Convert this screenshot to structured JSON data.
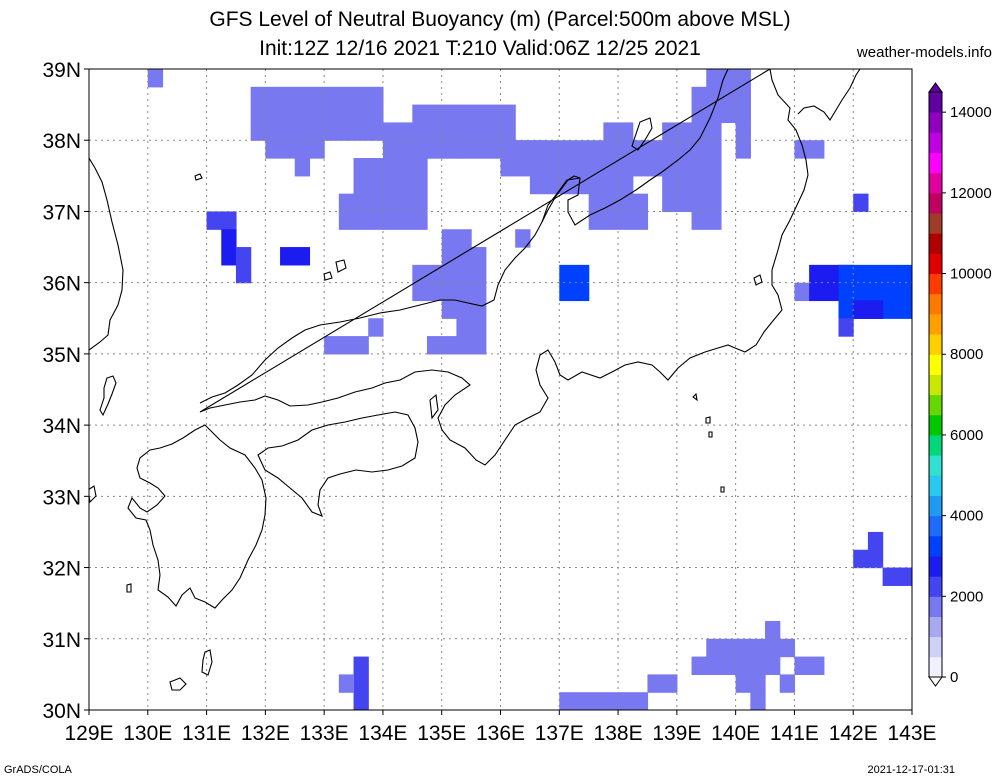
{
  "title_line1": "GFS Level of Neutral Buoyancy (m) (Parcel:500m above MSL)",
  "title_line2": "Init:12Z 12/16 2021 T:210 Valid:06Z 12/25 2021",
  "site": "weather-models.info",
  "footer_left": "GrADS/COLA",
  "footer_right": "2021-12-17-01:31",
  "map": {
    "lon_range": [
      129,
      143
    ],
    "lat_range": [
      30,
      39
    ],
    "lon_labels": [
      "129E",
      "130E",
      "131E",
      "132E",
      "133E",
      "134E",
      "135E",
      "136E",
      "137E",
      "138E",
      "139E",
      "140E",
      "141E",
      "142E",
      "143E"
    ],
    "lat_labels": [
      "30N",
      "31N",
      "32N",
      "33N",
      "34N",
      "35N",
      "36N",
      "37N",
      "38N",
      "39N"
    ],
    "grid": true,
    "cell_deg": 0.25
  },
  "colorbar": {
    "labels": [
      "0",
      "2000",
      "4000",
      "6000",
      "8000",
      "10000",
      "12000",
      "14000"
    ],
    "values": [
      0,
      2000,
      4000,
      6000,
      8000,
      10000,
      12000,
      14000
    ],
    "colors": [
      "#f0f0ff",
      "#d0d0f8",
      "#a8a8f0",
      "#7878f0",
      "#4444f0",
      "#1c1cf0",
      "#0040ff",
      "#1e6cff",
      "#1e9bf0",
      "#28c8f0",
      "#30e0d0",
      "#00d87a",
      "#00c800",
      "#64d800",
      "#c8e800",
      "#ffff00",
      "#ffd000",
      "#ffa000",
      "#ff7800",
      "#ff3c00",
      "#e00000",
      "#b00000",
      "#a03c28",
      "#c00060",
      "#e000a0",
      "#ff00ff",
      "#c000e0",
      "#9000c0",
      "#6000a0"
    ]
  },
  "colors": {
    "deep_blue": "#1c1cf0",
    "blue": "#1e4cf0",
    "light_blue": "#2a80f0",
    "cyan": "#28b8f0",
    "coast": "#000000",
    "grid": "#888888"
  },
  "lnb_field": [
    {
      "lon": [
        130.0,
        130.25
      ],
      "lat": [
        38.75,
        39.0
      ],
      "lnb": 1800
    },
    {
      "lon": [
        131.75,
        133.0
      ],
      "lat": [
        38.0,
        38.75
      ],
      "lnb": 1700
    },
    {
      "lon": [
        132.0,
        133.0
      ],
      "lat": [
        37.75,
        38.25
      ],
      "lnb": 1800
    },
    {
      "lon": [
        132.5,
        132.75
      ],
      "lat": [
        37.5,
        37.75
      ],
      "lnb": 1800
    },
    {
      "lon": [
        133.0,
        134.0
      ],
      "lat": [
        38.0,
        38.75
      ],
      "lnb": 1700
    },
    {
      "lon": [
        134.0,
        135.25
      ],
      "lat": [
        37.75,
        38.25
      ],
      "lnb": 1800
    },
    {
      "lon": [
        134.5,
        135.25
      ],
      "lat": [
        38.25,
        38.5
      ],
      "lnb": 1800
    },
    {
      "lon": [
        135.25,
        136.25
      ],
      "lat": [
        37.75,
        38.5
      ],
      "lnb": 1900
    },
    {
      "lon": [
        134.75,
        136.75
      ],
      "lat": [
        37.75,
        38.0
      ],
      "lnb": 1800
    },
    {
      "lon": [
        133.25,
        134.0
      ],
      "lat": [
        36.75,
        37.25
      ],
      "lnb": 1800
    },
    {
      "lon": [
        133.5,
        134.25
      ],
      "lat": [
        37.25,
        37.75
      ],
      "lnb": 1800
    },
    {
      "lon": [
        134.0,
        134.75
      ],
      "lat": [
        36.75,
        37.75
      ],
      "lnb": 1800
    },
    {
      "lon": [
        136.0,
        139.5
      ],
      "lat": [
        37.5,
        38.0
      ],
      "lnb": 1900
    },
    {
      "lon": [
        136.5,
        138.25
      ],
      "lat": [
        37.25,
        37.5
      ],
      "lnb": 1800
    },
    {
      "lon": [
        137.75,
        138.25
      ],
      "lat": [
        38.0,
        38.25
      ],
      "lnb": 1800
    },
    {
      "lon": [
        138.75,
        139.75
      ],
      "lat": [
        37.0,
        38.25
      ],
      "lnb": 1900
    },
    {
      "lon": [
        139.25,
        140.25
      ],
      "lat": [
        38.25,
        38.75
      ],
      "lnb": 1900
    },
    {
      "lon": [
        139.5,
        140.25
      ],
      "lat": [
        38.75,
        39.0
      ],
      "lnb": 1800
    },
    {
      "lon": [
        137.5,
        138.5
      ],
      "lat": [
        36.75,
        37.25
      ],
      "lnb": 1900
    },
    {
      "lon": [
        140.0,
        140.25
      ],
      "lat": [
        37.75,
        38.25
      ],
      "lnb": 1900
    },
    {
      "lon": [
        139.25,
        139.75
      ],
      "lat": [
        36.75,
        37.0
      ],
      "lnb": 1800
    },
    {
      "lon": [
        141.0,
        141.5
      ],
      "lat": [
        37.75,
        38.0
      ],
      "lnb": 1800
    },
    {
      "lon": [
        142.0,
        142.25
      ],
      "lat": [
        37.0,
        37.25
      ],
      "lnb": 2000
    },
    {
      "lon": [
        131.0,
        131.5
      ],
      "lat": [
        36.75,
        37.0
      ],
      "lnb": 2100
    },
    {
      "lon": [
        131.25,
        131.5
      ],
      "lat": [
        36.25,
        36.75
      ],
      "lnb": 2500
    },
    {
      "lon": [
        131.5,
        131.75
      ],
      "lat": [
        36.0,
        36.5
      ],
      "lnb": 2400
    },
    {
      "lon": [
        132.25,
        132.75
      ],
      "lat": [
        36.25,
        36.5
      ],
      "lnb": 2800
    },
    {
      "lon": [
        134.5,
        135.75
      ],
      "lat": [
        35.75,
        36.25
      ],
      "lnb": 1900
    },
    {
      "lon": [
        135.0,
        135.75
      ],
      "lat": [
        36.25,
        36.5
      ],
      "lnb": 1900
    },
    {
      "lon": [
        135.0,
        135.5
      ],
      "lat": [
        36.5,
        36.75
      ],
      "lnb": 1800
    },
    {
      "lon": [
        135.0,
        135.75
      ],
      "lat": [
        35.5,
        35.75
      ],
      "lnb": 1900
    },
    {
      "lon": [
        134.75,
        135.75
      ],
      "lat": [
        35.0,
        35.25
      ],
      "lnb": 1800
    },
    {
      "lon": [
        135.25,
        135.75
      ],
      "lat": [
        35.25,
        35.5
      ],
      "lnb": 1900
    },
    {
      "lon": [
        136.25,
        136.5
      ],
      "lat": [
        36.5,
        36.75
      ],
      "lnb": 1800
    },
    {
      "lon": [
        133.0,
        133.75
      ],
      "lat": [
        35.0,
        35.25
      ],
      "lnb": 1800
    },
    {
      "lon": [
        133.75,
        134.0
      ],
      "lat": [
        35.25,
        35.5
      ],
      "lnb": 1900
    },
    {
      "lon": [
        137.0,
        137.5
      ],
      "lat": [
        35.75,
        36.25
      ],
      "lnb": 2900
    },
    {
      "lon": [
        141.0,
        141.25
      ],
      "lat": [
        35.75,
        36.0
      ],
      "lnb": 1800
    },
    {
      "lon": [
        141.25,
        142.0
      ],
      "lat": [
        35.75,
        36.25
      ],
      "lnb": 2600
    },
    {
      "lon": [
        141.75,
        143.0
      ],
      "lat": [
        35.5,
        36.25
      ],
      "lnb": 3100
    },
    {
      "lon": [
        142.0,
        142.5
      ],
      "lat": [
        35.5,
        35.75
      ],
      "lnb": 2700
    },
    {
      "lon": [
        141.75,
        142.0
      ],
      "lat": [
        35.25,
        35.5
      ],
      "lnb": 2400
    },
    {
      "lon": [
        142.0,
        142.5
      ],
      "lat": [
        32.0,
        32.25
      ],
      "lnb": 2300
    },
    {
      "lon": [
        142.25,
        142.5
      ],
      "lat": [
        32.25,
        32.5
      ],
      "lnb": 2300
    },
    {
      "lon": [
        142.5,
        143.0
      ],
      "lat": [
        31.75,
        32.0
      ],
      "lnb": 2300
    },
    {
      "lon": [
        133.5,
        133.75
      ],
      "lat": [
        30.0,
        30.75
      ],
      "lnb": 2000
    },
    {
      "lon": [
        133.25,
        133.5
      ],
      "lat": [
        30.25,
        30.5
      ],
      "lnb": 1900
    },
    {
      "lon": [
        137.0,
        138.5
      ],
      "lat": [
        30.0,
        30.25
      ],
      "lnb": 1900
    },
    {
      "lon": [
        138.5,
        139.0
      ],
      "lat": [
        30.25,
        30.5
      ],
      "lnb": 1900
    },
    {
      "lon": [
        139.25,
        140.75
      ],
      "lat": [
        30.5,
        30.75
      ],
      "lnb": 1800
    },
    {
      "lon": [
        139.5,
        141.0
      ],
      "lat": [
        30.75,
        31.0
      ],
      "lnb": 1800
    },
    {
      "lon": [
        140.5,
        140.75
      ],
      "lat": [
        31.0,
        31.25
      ],
      "lnb": 1800
    },
    {
      "lon": [
        140.0,
        140.5
      ],
      "lat": [
        30.25,
        30.5
      ],
      "lnb": 1800
    },
    {
      "lon": [
        140.75,
        141.0
      ],
      "lat": [
        30.25,
        30.5
      ],
      "lnb": 1800
    },
    {
      "lon": [
        141.0,
        141.5
      ],
      "lat": [
        30.5,
        30.75
      ],
      "lnb": 1800
    },
    {
      "lon": [
        140.25,
        140.5
      ],
      "lat": [
        30.0,
        30.25
      ],
      "lnb": 1800
    }
  ]
}
